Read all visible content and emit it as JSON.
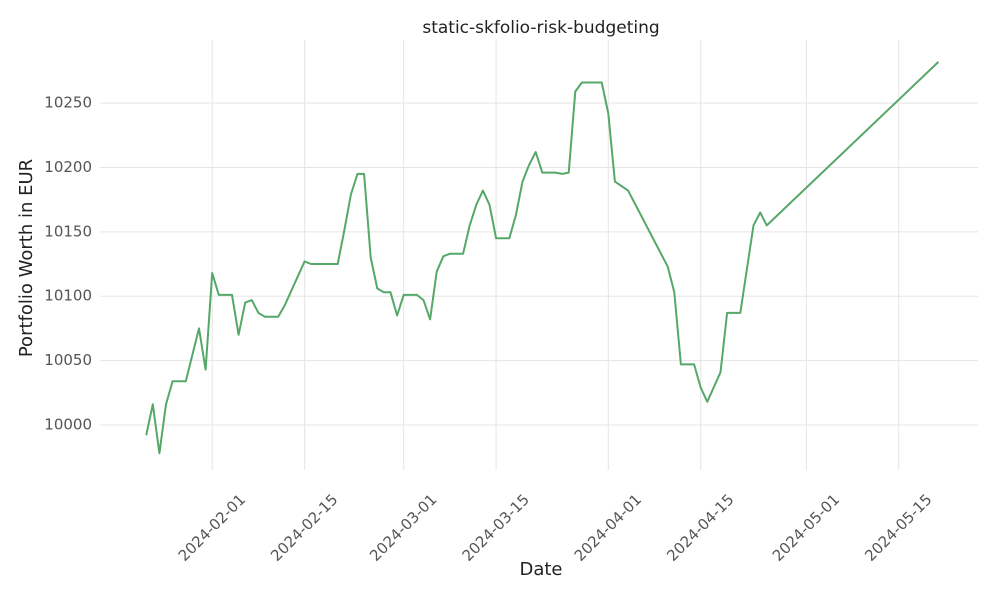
{
  "chart_data": {
    "type": "line",
    "title": "static-skfolio-risk-budgeting",
    "x_label": "Date",
    "y_label": "Portfolio Worth in EUR",
    "x": [
      "2024-01-22",
      "2024-01-23",
      "2024-01-24",
      "2024-01-25",
      "2024-01-26",
      "2024-01-28",
      "2024-01-30",
      "2024-01-31",
      "2024-02-01",
      "2024-02-02",
      "2024-02-04",
      "2024-02-05",
      "2024-02-06",
      "2024-02-07",
      "2024-02-08",
      "2024-02-09",
      "2024-02-11",
      "2024-02-12",
      "2024-02-15",
      "2024-02-16",
      "2024-02-20",
      "2024-02-21",
      "2024-02-22",
      "2024-02-23",
      "2024-02-24",
      "2024-02-25",
      "2024-02-26",
      "2024-02-27",
      "2024-02-28",
      "2024-02-29",
      "2024-03-01",
      "2024-03-03",
      "2024-03-04",
      "2024-03-05",
      "2024-03-06",
      "2024-03-07",
      "2024-03-08",
      "2024-03-10",
      "2024-03-11",
      "2024-03-12",
      "2024-03-13",
      "2024-03-14",
      "2024-03-15",
      "2024-03-17",
      "2024-03-18",
      "2024-03-19",
      "2024-03-20",
      "2024-03-21",
      "2024-03-22",
      "2024-03-24",
      "2024-03-25",
      "2024-03-26",
      "2024-03-27",
      "2024-03-28",
      "2024-03-31",
      "2024-04-01",
      "2024-04-02",
      "2024-04-04",
      "2024-04-10",
      "2024-04-11",
      "2024-04-12",
      "2024-04-14",
      "2024-04-15",
      "2024-04-16",
      "2024-04-18",
      "2024-04-19",
      "2024-04-21",
      "2024-04-23",
      "2024-04-24",
      "2024-04-25",
      "2024-05-21"
    ],
    "series": [
      {
        "name": "static-skfolio-risk-budgeting",
        "color": "#55a868",
        "values": [
          9992,
          10016,
          9978,
          10016,
          10034,
          10034,
          10075,
          10043,
          10118,
          10101,
          10101,
          10070,
          10095,
          10097,
          10087,
          10084,
          10084,
          10093,
          10127,
          10125,
          10125,
          10151,
          10179,
          10195,
          10195,
          10130,
          10106,
          10103,
          10103,
          10085,
          10101,
          10101,
          10097,
          10082,
          10119,
          10131,
          10133,
          10133,
          10155,
          10171,
          10182,
          10171,
          10145,
          10145,
          10163,
          10189,
          10202,
          10212,
          10196,
          10196,
          10195,
          10196,
          10259,
          10266,
          10266,
          10242,
          10189,
          10182,
          10123,
          10103,
          10047,
          10047,
          10029,
          10018,
          10041,
          10087,
          10087,
          10155,
          10165,
          10155,
          10282
        ]
      }
    ],
    "xlim": [
      "2024-01-15",
      "2024-05-27"
    ],
    "xticks": [
      "2024-02-01",
      "2024-02-15",
      "2024-03-01",
      "2024-03-15",
      "2024-04-01",
      "2024-04-15",
      "2024-05-01",
      "2024-05-15"
    ],
    "ylim": [
      9965,
      10299
    ],
    "yticks": [
      10000,
      10050,
      10100,
      10150,
      10200,
      10250
    ],
    "grid": true
  }
}
